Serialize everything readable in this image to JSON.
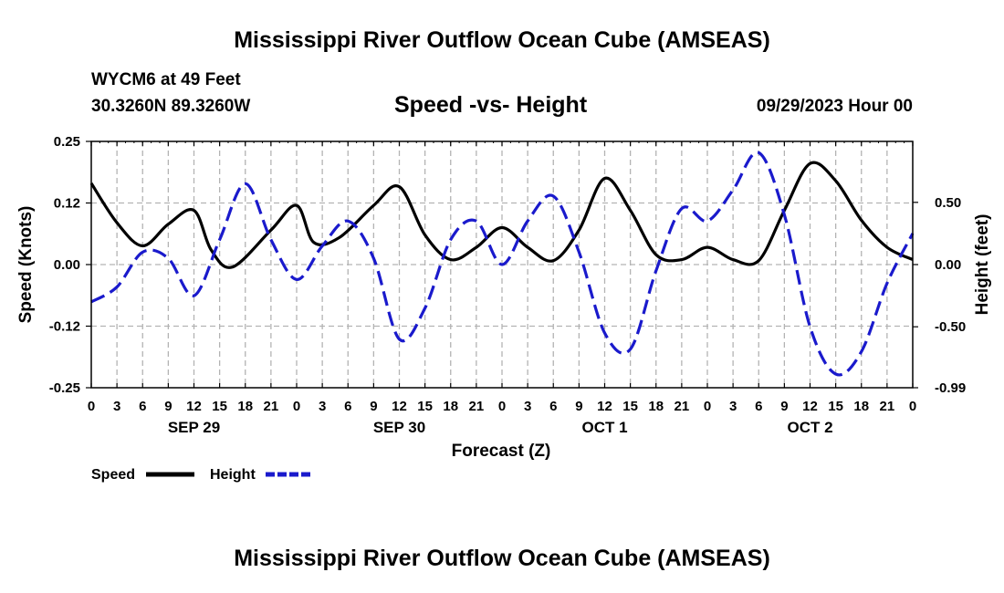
{
  "header": {
    "title": "Mississippi River Outflow Ocean Cube (AMSEAS)",
    "station": "WYCM6 at 49 Feet",
    "coords": "30.3260N  89.3260W",
    "subtitle": "Speed -vs- Height",
    "datetime": "09/29/2023 Hour 00",
    "bottom_title": "Mississippi River Outflow Ocean Cube (AMSEAS)"
  },
  "chart_data": {
    "type": "line",
    "title": "Speed -vs- Height",
    "xlabel": "Forecast (Z)",
    "ylabel": "Speed (Knots)",
    "y2label": "Height (feet)",
    "x_range": [
      0,
      96
    ],
    "ylim": [
      -0.25,
      0.25
    ],
    "y2lim": [
      -0.99,
      0.99
    ],
    "grid": true,
    "x_tick_labels": [
      "0",
      "3",
      "6",
      "9",
      "12",
      "15",
      "18",
      "21",
      "0",
      "3",
      "6",
      "9",
      "12",
      "15",
      "18",
      "21",
      "0",
      "3",
      "6",
      "9",
      "12",
      "15",
      "18",
      "21",
      "0",
      "3",
      "6",
      "9",
      "12",
      "15",
      "18",
      "21",
      "0"
    ],
    "date_labels": [
      {
        "label": "SEP 29",
        "hour": 12
      },
      {
        "label": "SEP 30",
        "hour": 36
      },
      {
        "label": "OCT 1",
        "hour": 60
      },
      {
        "label": "OCT 2",
        "hour": 84
      }
    ],
    "y_tick_labels": [
      "0.25",
      "0.12",
      "0.00",
      "-0.12",
      "-0.25"
    ],
    "y_tick_values": [
      0.25,
      0.125,
      0,
      -0.125,
      -0.25
    ],
    "y2_tick_labels": [
      "0.50",
      "0.00",
      "-0.50",
      "-0.99"
    ],
    "y2_tick_values": [
      0.5,
      0,
      -0.5,
      -0.99
    ],
    "legend_position": "bottom-left",
    "series": [
      {
        "name": "Speed",
        "axis": "left",
        "color": "#000000",
        "dash": "solid",
        "x": [
          0,
          3,
          6,
          9,
          12,
          14,
          16.5,
          21,
          24,
          26,
          29,
          33,
          36,
          39,
          42,
          45,
          48,
          51,
          54,
          57,
          60,
          63,
          66,
          69,
          72,
          75,
          78,
          81,
          84,
          87,
          90,
          93,
          96
        ],
        "y": [
          0.165,
          0.085,
          0.038,
          0.082,
          0.11,
          0.03,
          -0.005,
          0.07,
          0.12,
          0.045,
          0.055,
          0.12,
          0.158,
          0.06,
          0.01,
          0.035,
          0.075,
          0.035,
          0.008,
          0.07,
          0.175,
          0.11,
          0.02,
          0.01,
          0.035,
          0.01,
          0.008,
          0.11,
          0.205,
          0.17,
          0.09,
          0.035,
          0.01
        ]
      },
      {
        "name": "Height",
        "axis": "right",
        "color": "#1a1acc",
        "dash": "dashed",
        "x": [
          0,
          3,
          6,
          9,
          12,
          15,
          18,
          21,
          24,
          27,
          30,
          33,
          36,
          39,
          42,
          45,
          48,
          51,
          54,
          57,
          60,
          63,
          66,
          69,
          72,
          75,
          78,
          81,
          84,
          87,
          90,
          93,
          96
        ],
        "y": [
          -0.3,
          -0.18,
          0.1,
          0.05,
          -0.25,
          0.2,
          0.65,
          0.2,
          -0.12,
          0.15,
          0.35,
          0.05,
          -0.6,
          -0.35,
          0.2,
          0.35,
          0.0,
          0.35,
          0.55,
          0.1,
          -0.55,
          -0.68,
          -0.05,
          0.45,
          0.35,
          0.6,
          0.9,
          0.4,
          -0.5,
          -0.88,
          -0.7,
          -0.15,
          0.25
        ]
      }
    ]
  }
}
